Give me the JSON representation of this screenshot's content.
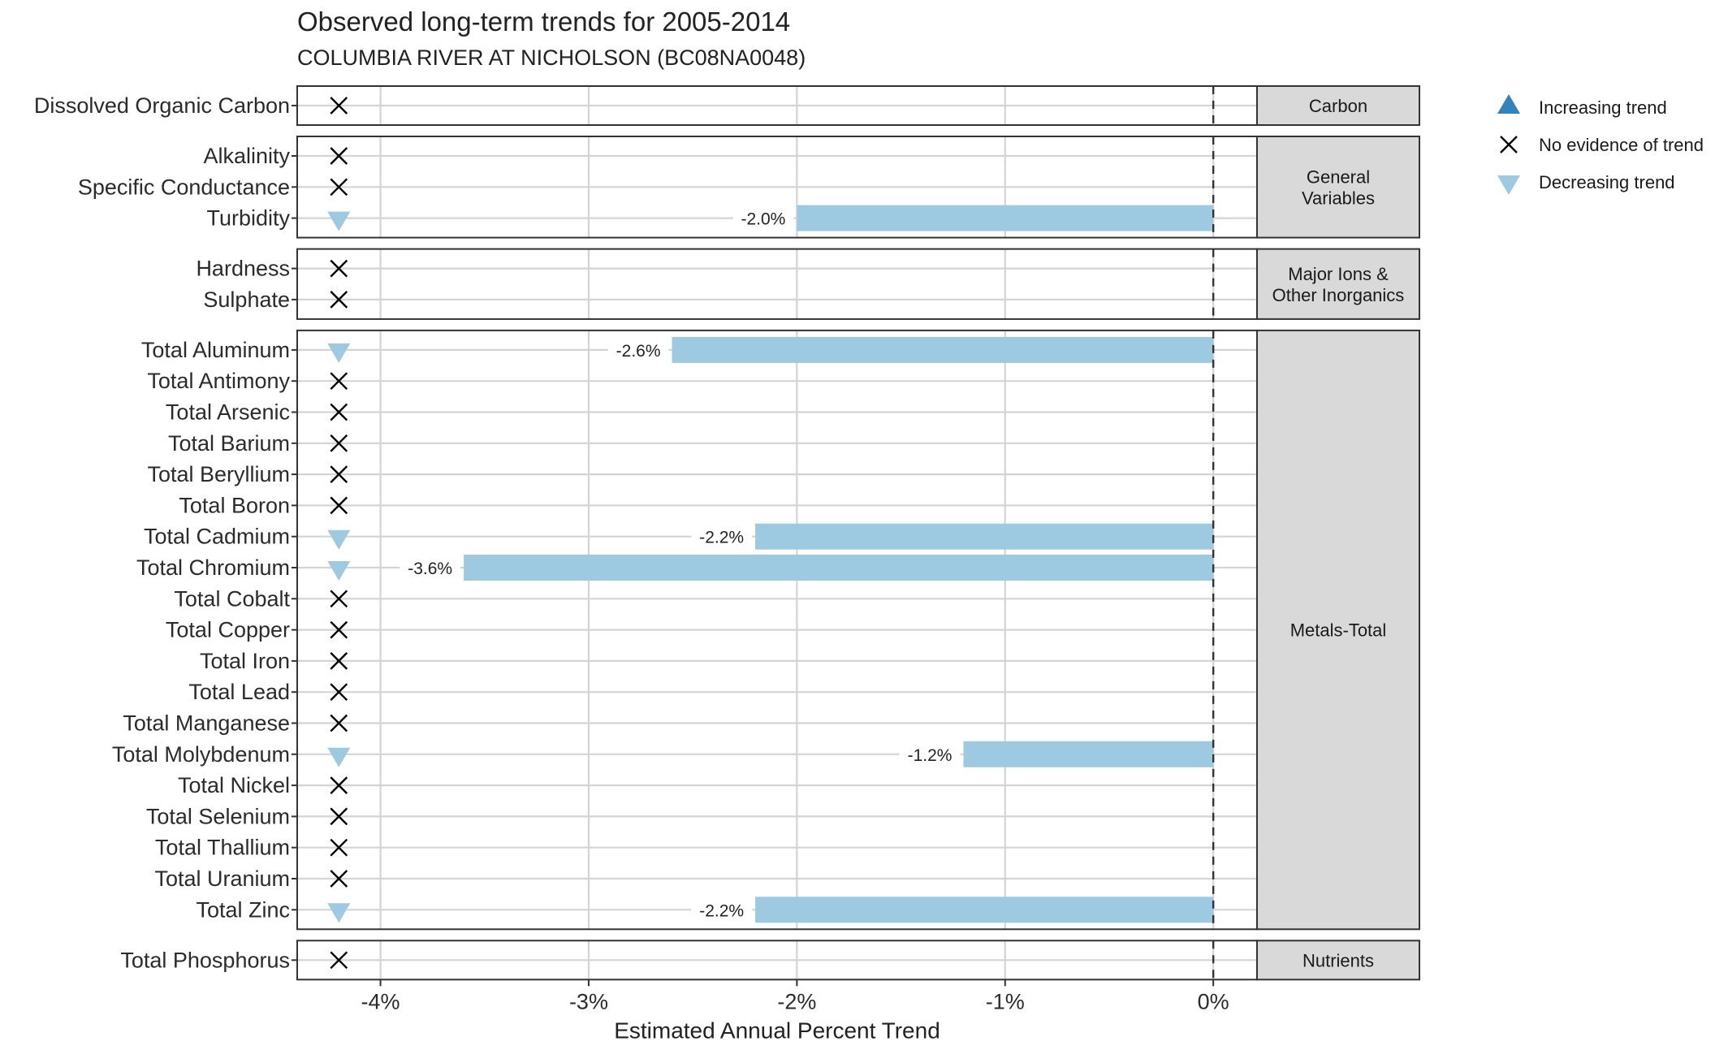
{
  "chart_data": {
    "type": "bar",
    "title": "Observed long-term trends for 2005-2014",
    "subtitle": "COLUMBIA RIVER AT NICHOLSON (BC08NA0048)",
    "xlabel": "Estimated Annual Percent Trend",
    "ylabel": "",
    "xlim": [
      -4.4,
      0.21
    ],
    "x_ticks": [
      -4,
      -3,
      -2,
      -1,
      0
    ],
    "x_tick_labels": [
      "-4%",
      "-3%",
      "-2%",
      "-1%",
      "0%"
    ],
    "reference_line": 0,
    "grid": true,
    "legend": {
      "position": "right",
      "entries": [
        {
          "label": "Increasing trend",
          "shape": "triangle-up",
          "color": "#3182bd"
        },
        {
          "label": "No evidence of trend",
          "shape": "x",
          "color": "#000000"
        },
        {
          "label": "Decreasing trend",
          "shape": "triangle-down",
          "color": "#9ecae1"
        }
      ]
    },
    "colors": {
      "bar": "#9ecae1",
      "increasing": "#3182bd",
      "decreasing": "#9ecae1",
      "none": "#000000"
    },
    "panels": [
      {
        "facet": "Carbon",
        "rows": [
          {
            "name": "Dissolved Organic Carbon",
            "trend": "none",
            "value": null,
            "label": ""
          }
        ]
      },
      {
        "facet": "General\nVariables",
        "rows": [
          {
            "name": "Alkalinity",
            "trend": "none",
            "value": null,
            "label": ""
          },
          {
            "name": "Specific Conductance",
            "trend": "none",
            "value": null,
            "label": ""
          },
          {
            "name": "Turbidity",
            "trend": "decreasing",
            "value": -2.0,
            "label": "-2.0%"
          }
        ]
      },
      {
        "facet": "Major Ions &\nOther Inorganics",
        "rows": [
          {
            "name": "Hardness",
            "trend": "none",
            "value": null,
            "label": ""
          },
          {
            "name": "Sulphate",
            "trend": "none",
            "value": null,
            "label": ""
          }
        ]
      },
      {
        "facet": "Metals-Total",
        "rows": [
          {
            "name": "Total Aluminum",
            "trend": "decreasing",
            "value": -2.6,
            "label": "-2.6%"
          },
          {
            "name": "Total Antimony",
            "trend": "none",
            "value": null,
            "label": ""
          },
          {
            "name": "Total Arsenic",
            "trend": "none",
            "value": null,
            "label": ""
          },
          {
            "name": "Total Barium",
            "trend": "none",
            "value": null,
            "label": ""
          },
          {
            "name": "Total Beryllium",
            "trend": "none",
            "value": null,
            "label": ""
          },
          {
            "name": "Total Boron",
            "trend": "none",
            "value": null,
            "label": ""
          },
          {
            "name": "Total Cadmium",
            "trend": "decreasing",
            "value": -2.2,
            "label": "-2.2%"
          },
          {
            "name": "Total Chromium",
            "trend": "decreasing",
            "value": -3.6,
            "label": "-3.6%"
          },
          {
            "name": "Total Cobalt",
            "trend": "none",
            "value": null,
            "label": ""
          },
          {
            "name": "Total Copper",
            "trend": "none",
            "value": null,
            "label": ""
          },
          {
            "name": "Total Iron",
            "trend": "none",
            "value": null,
            "label": ""
          },
          {
            "name": "Total Lead",
            "trend": "none",
            "value": null,
            "label": ""
          },
          {
            "name": "Total Manganese",
            "trend": "none",
            "value": null,
            "label": ""
          },
          {
            "name": "Total Molybdenum",
            "trend": "decreasing",
            "value": -1.2,
            "label": "-1.2%"
          },
          {
            "name": "Total Nickel",
            "trend": "none",
            "value": null,
            "label": ""
          },
          {
            "name": "Total Selenium",
            "trend": "none",
            "value": null,
            "label": ""
          },
          {
            "name": "Total Thallium",
            "trend": "none",
            "value": null,
            "label": ""
          },
          {
            "name": "Total Uranium",
            "trend": "none",
            "value": null,
            "label": ""
          },
          {
            "name": "Total Zinc",
            "trend": "decreasing",
            "value": -2.2,
            "label": "-2.2%"
          }
        ]
      },
      {
        "facet": "Nutrients",
        "rows": [
          {
            "name": "Total Phosphorus",
            "trend": "none",
            "value": null,
            "label": ""
          }
        ]
      }
    ]
  }
}
